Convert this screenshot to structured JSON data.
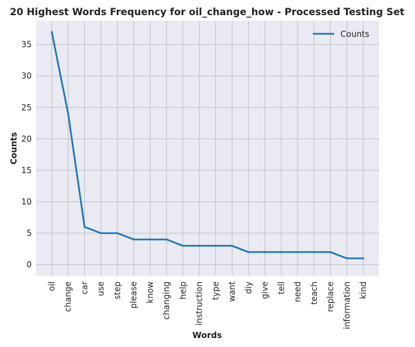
{
  "chart_data": {
    "type": "line",
    "title": "20 Highest Words Frequency for oil_change_how - Processed Testing Set",
    "xlabel": "Words",
    "ylabel": "Counts",
    "categories": [
      "oil",
      "change",
      "car",
      "use",
      "step",
      "please",
      "know",
      "changing",
      "help",
      "instruction",
      "type",
      "want",
      "diy",
      "give",
      "tell",
      "need",
      "teach",
      "replace",
      "information",
      "kind"
    ],
    "series": [
      {
        "name": "Counts",
        "values": [
          37,
          24,
          6,
          5,
          5,
          4,
          4,
          4,
          3,
          3,
          3,
          3,
          2,
          2,
          2,
          2,
          2,
          2,
          1,
          1
        ],
        "color": "#1f77b4"
      }
    ],
    "ylim": [
      -1.8,
      38.8
    ],
    "yticks": [
      0,
      5,
      10,
      15,
      20,
      25,
      30,
      35
    ],
    "grid": true,
    "legend": "top-right",
    "background": "#eaeaf2",
    "grid_color": "#c0c0c8"
  }
}
